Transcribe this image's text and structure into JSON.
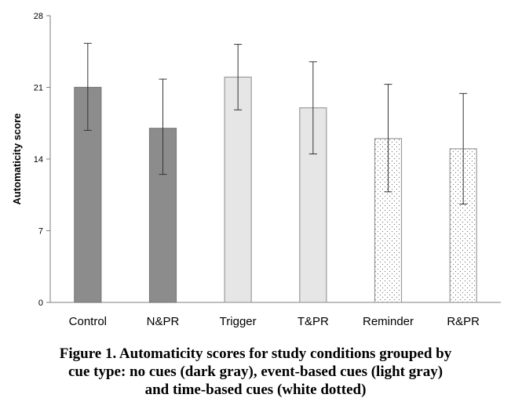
{
  "chart_data": {
    "type": "bar",
    "ylabel": "Automaticity score",
    "xlabel": "",
    "ylim": [
      0,
      28
    ],
    "yticks": [
      0,
      7,
      14,
      21,
      28
    ],
    "grid": false,
    "categories": [
      "Control",
      "N&PR",
      "Trigger",
      "T&PR",
      "Reminder",
      "R&PR"
    ],
    "values": [
      21.0,
      17.0,
      22.0,
      19.0,
      16.0,
      15.0
    ],
    "error_low": [
      16.8,
      12.5,
      18.8,
      14.5,
      10.8,
      9.6
    ],
    "error_high": [
      25.3,
      21.8,
      25.2,
      23.5,
      21.3,
      20.4
    ],
    "bar_styles": [
      "dark-gray",
      "dark-gray",
      "light-gray",
      "light-gray",
      "white-dotted",
      "white-dotted"
    ]
  },
  "colors": {
    "dark_gray": "#8c8c8c",
    "light_gray": "#e6e6e6",
    "white_dotted": "#ffffff",
    "axis": "#7f7f7f"
  },
  "caption": {
    "line1": "Figure 1. Automaticity scores for study conditions grouped by",
    "line2": "cue type: no cues (dark gray), event-based cues (light gray)",
    "line3": "and time-based cues (white dotted)"
  }
}
